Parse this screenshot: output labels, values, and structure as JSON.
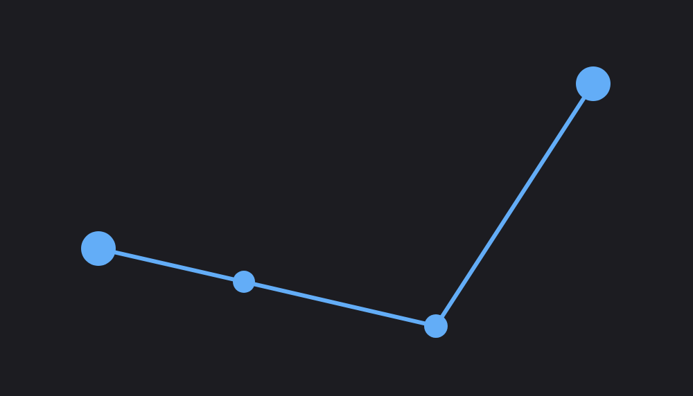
{
  "canvas": {
    "background": "#1c1c21",
    "accent": "#63adf7"
  },
  "path": {
    "name": "polyline-path",
    "node_count": 4,
    "segment_count": 3,
    "nodes": [
      {
        "name": "node-1",
        "kind": "endpoint"
      },
      {
        "name": "node-2",
        "kind": "midpoint"
      },
      {
        "name": "node-3",
        "kind": "vertex"
      },
      {
        "name": "node-4",
        "kind": "endpoint"
      }
    ]
  }
}
